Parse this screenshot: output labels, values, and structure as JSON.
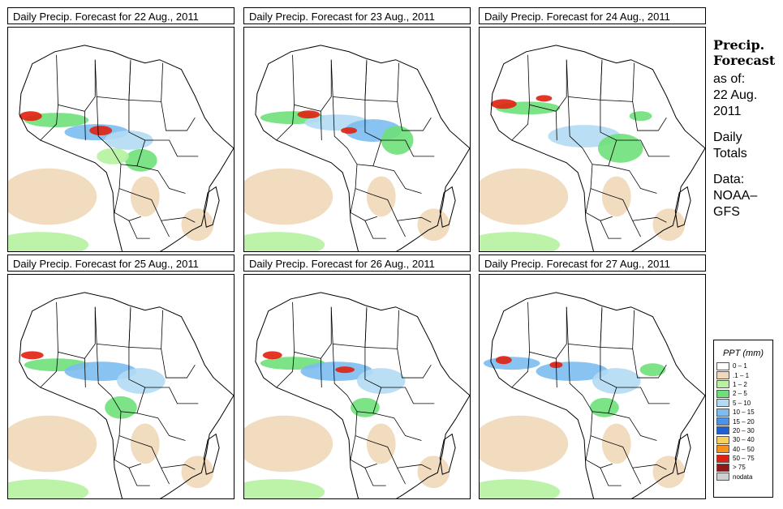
{
  "panels": [
    {
      "title": "Daily Precip. Forecast for  22 Aug., 2011"
    },
    {
      "title": "Daily Precip. Forecast for  23 Aug., 2011"
    },
    {
      "title": "Daily Precip. Forecast for  24 Aug., 2011"
    },
    {
      "title": "Daily Precip. Forecast for  25 Aug., 2011"
    },
    {
      "title": "Daily Precip. Forecast for  26 Aug., 2011"
    },
    {
      "title": "Daily Precip. Forecast for  27 Aug., 2011"
    }
  ],
  "side": {
    "title1": "Precip.",
    "title2": "Forecast",
    "asof1": "as of:",
    "asof2": "22 Aug.",
    "asof3": "2011",
    "daily1": "Daily",
    "daily2": "Totals",
    "data1": "Data:",
    "data2": "NOAA–",
    "data3": "GFS"
  },
  "legend": {
    "title": "PPT (mm)",
    "items": [
      {
        "label": "0 – 1",
        "color": "#ffffff"
      },
      {
        "label": ".1 – 1",
        "color": "#f0d8b8"
      },
      {
        "label": "1 – 2",
        "color": "#b6f2a0"
      },
      {
        "label": "2 – 5",
        "color": "#6ee07a"
      },
      {
        "label": "5 – 10",
        "color": "#b2dcf4"
      },
      {
        "label": "10 – 15",
        "color": "#7cbcf0"
      },
      {
        "label": "15 – 20",
        "color": "#4c92e8"
      },
      {
        "label": "20 – 30",
        "color": "#2060d0"
      },
      {
        "label": "30 – 40",
        "color": "#f8d060"
      },
      {
        "label": "40 – 50",
        "color": "#f89020"
      },
      {
        "label": "50 – 75",
        "color": "#e02010"
      },
      {
        "label": "> 75",
        "color": "#901818"
      },
      {
        "label": "nodata",
        "color": "#cfcfcf"
      }
    ]
  }
}
